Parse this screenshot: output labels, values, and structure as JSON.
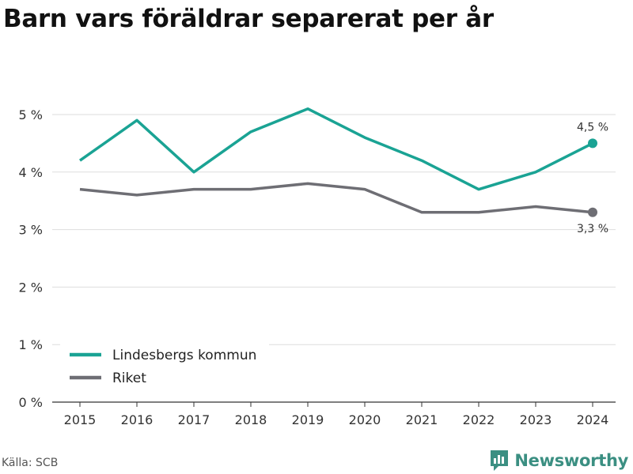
{
  "title": "Barn vars föräldrar separerat per år",
  "source": "Källa: SCB",
  "brand": {
    "name": "Newsworthy",
    "icon": "newsworthy-logo-icon",
    "color": "#3b8f82"
  },
  "chart_data": {
    "type": "line",
    "x": [
      "2015",
      "2016",
      "2017",
      "2018",
      "2019",
      "2020",
      "2021",
      "2022",
      "2023",
      "2024"
    ],
    "ylim": [
      0,
      5
    ],
    "yticks": [
      0,
      1,
      2,
      3,
      4,
      5
    ],
    "ytick_labels": [
      "0 %",
      "1 %",
      "2 %",
      "3 %",
      "4 %",
      "5 %"
    ],
    "grid": true,
    "legend_position": "bottom-left",
    "series": [
      {
        "name": "Lindesbergs kommun",
        "color": "#1aa394",
        "values": [
          4.2,
          4.9,
          4.0,
          4.7,
          5.1,
          4.6,
          4.2,
          3.7,
          4.0,
          4.5
        ],
        "end_label": "4,5 %"
      },
      {
        "name": "Riket",
        "color": "#6e6e74",
        "values": [
          3.7,
          3.6,
          3.7,
          3.7,
          3.8,
          3.7,
          3.3,
          3.3,
          3.4,
          3.3
        ],
        "end_label": "3,3 %"
      }
    ]
  }
}
